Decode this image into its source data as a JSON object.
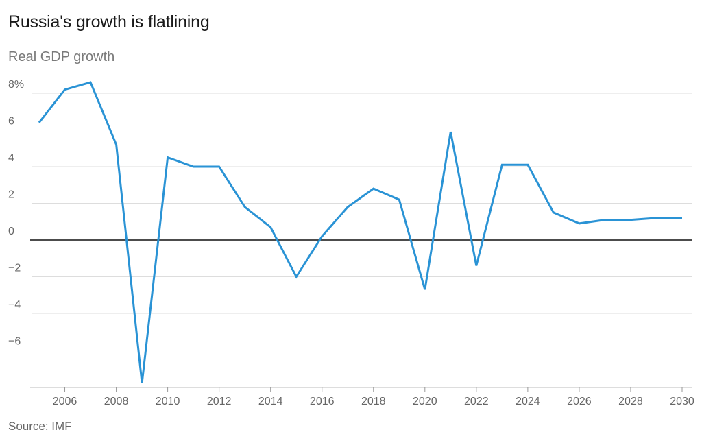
{
  "header": {
    "title": "Russia's growth is flatlining",
    "subtitle": "Real GDP growth"
  },
  "footer": {
    "source": "Source: IMF"
  },
  "chart_data": {
    "type": "line",
    "title": "Russia's growth is flatlining",
    "subtitle": "Real GDP growth",
    "xlabel": "",
    "ylabel": "",
    "xlim": [
      2005,
      2030
    ],
    "ylim": [
      -7.8,
      8.6
    ],
    "x_ticks": [
      2006,
      2008,
      2010,
      2012,
      2014,
      2016,
      2018,
      2020,
      2022,
      2024,
      2026,
      2028,
      2030
    ],
    "x_tick_labels": [
      "2006",
      "2008",
      "2010",
      "2012",
      "2014",
      "2016",
      "2018",
      "2020",
      "2022",
      "2024",
      "2026",
      "2028",
      "2030"
    ],
    "y_ticks": [
      8,
      6,
      4,
      2,
      0,
      -2,
      -4,
      -6
    ],
    "y_tick_labels": [
      "8%",
      "6",
      "4",
      "2",
      "0",
      "−2",
      "−4",
      "−6"
    ],
    "grid": true,
    "line_color": "#2a93d5",
    "series": [
      {
        "x": [
          2005,
          2006,
          2007,
          2008,
          2009,
          2010,
          2011,
          2012,
          2013,
          2014,
          2015,
          2016,
          2017,
          2018,
          2019,
          2020,
          2021,
          2022,
          2023,
          2024,
          2025,
          2026,
          2027,
          2028,
          2029,
          2030
        ],
        "values": [
          6.4,
          8.2,
          8.6,
          5.2,
          -7.8,
          4.5,
          4.0,
          4.0,
          1.8,
          0.7,
          -2.0,
          0.2,
          1.8,
          2.8,
          2.2,
          -2.7,
          5.9,
          -1.4,
          4.1,
          4.1,
          1.5,
          0.9,
          1.1,
          1.1,
          1.2,
          1.2
        ]
      }
    ]
  }
}
